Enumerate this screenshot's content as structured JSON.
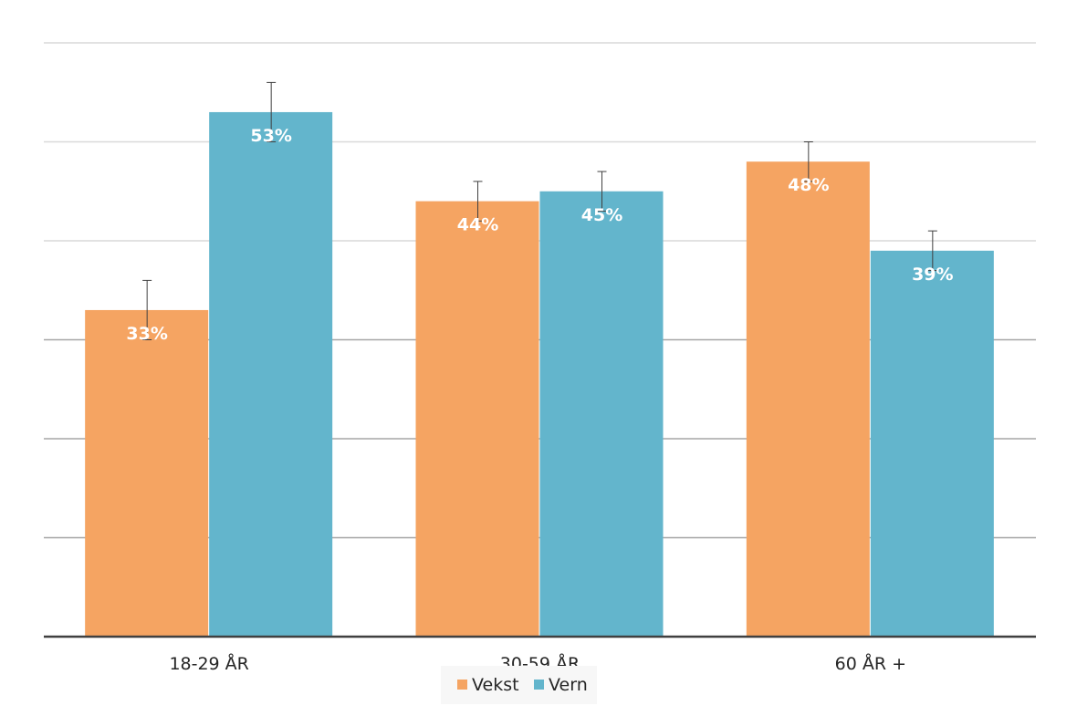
{
  "chart_data": {
    "type": "bar",
    "categories": [
      "18-29 ÅR",
      "30-59 ÅR",
      "60 ÅR +"
    ],
    "series": [
      {
        "name": "Vekst",
        "color": "#F5A462",
        "values": [
          33,
          44,
          48
        ],
        "labels": [
          "33%",
          "44%",
          "48%"
        ],
        "error_low": [
          3,
          2,
          2
        ],
        "error_high": [
          3,
          2,
          2
        ]
      },
      {
        "name": "Vern",
        "color": "#63B5CC",
        "values": [
          53,
          45,
          39
        ],
        "labels": [
          "53%",
          "45%",
          "39%"
        ],
        "error_low": [
          3,
          2,
          2
        ],
        "error_high": [
          3,
          2,
          2
        ]
      }
    ],
    "ylim": [
      0,
      60
    ],
    "ygrid_step": 10,
    "grid": true,
    "legend_position": "bottom",
    "title": "",
    "xlabel": "",
    "ylabel": ""
  }
}
